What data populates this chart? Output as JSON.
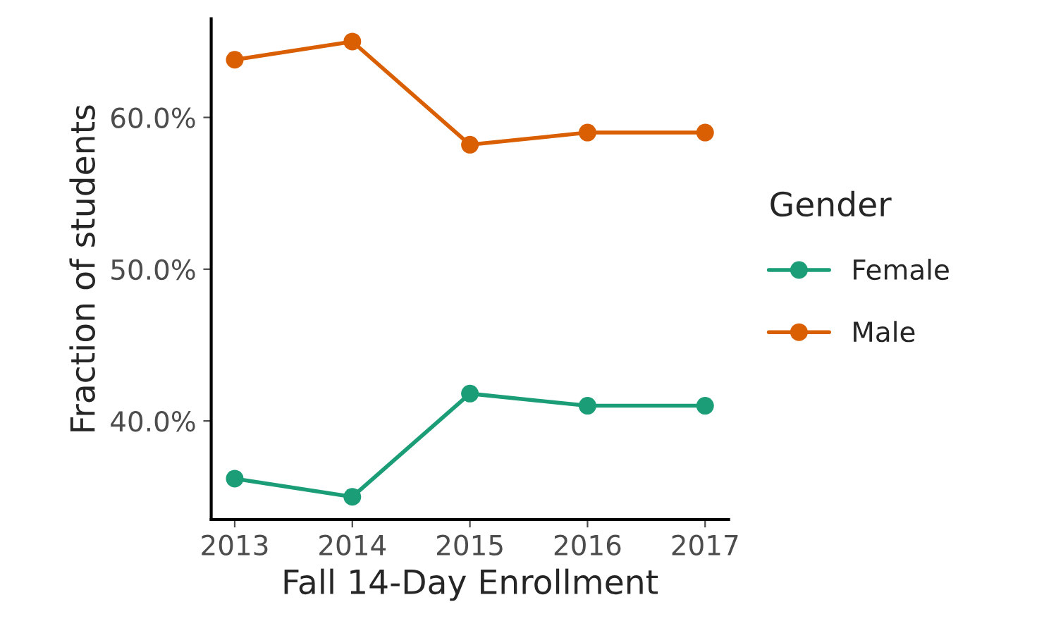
{
  "chart_data": {
    "type": "line",
    "xlabel": "Fall 14-Day Enrollment",
    "ylabel": "Fraction of students",
    "legend_title": "Gender",
    "x": [
      2013,
      2014,
      2015,
      2016,
      2017
    ],
    "series": [
      {
        "name": "Female",
        "color": "#1b9e77",
        "values": [
          36.2,
          35.0,
          41.8,
          41.0,
          41.0
        ]
      },
      {
        "name": "Male",
        "color": "#d95f02",
        "values": [
          63.8,
          65.0,
          58.2,
          59.0,
          59.0
        ]
      }
    ],
    "xlim": [
      2012.8,
      2017.2
    ],
    "xticks": [
      2013,
      2014,
      2015,
      2016,
      2017
    ],
    "ylim": [
      33.5,
      66.5
    ],
    "yticks": [
      {
        "value": 40,
        "label": "40.0%"
      },
      {
        "value": 50,
        "label": "50.0%"
      },
      {
        "value": 60,
        "label": "60.0%"
      }
    ],
    "grid": false,
    "legend": "right",
    "marker": "circle",
    "line_style": "solid"
  }
}
